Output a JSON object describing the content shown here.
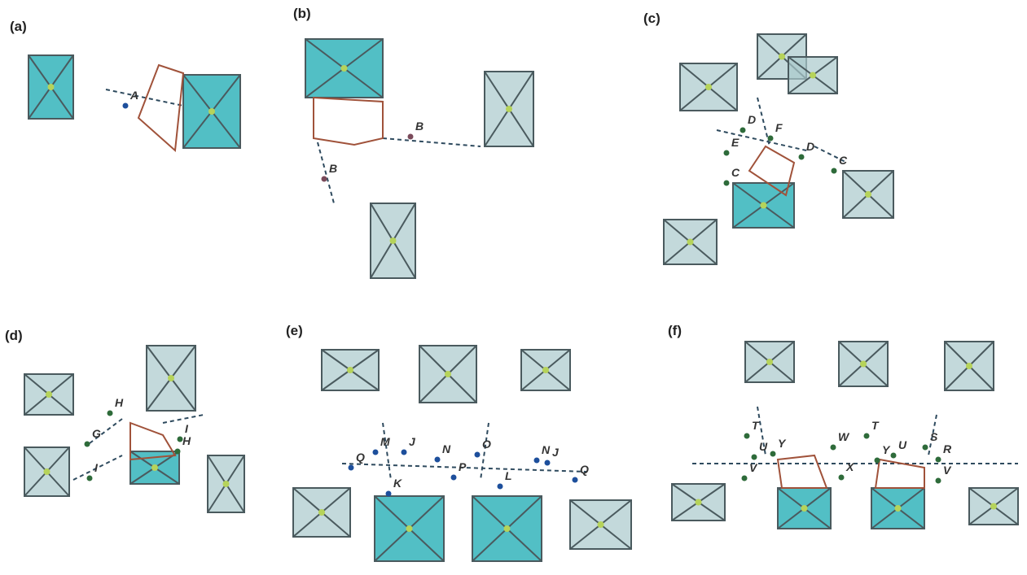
{
  "panels": [
    {
      "label": "(a)",
      "annotations": [
        "A"
      ]
    },
    {
      "label": "(b)",
      "annotations": [
        "B",
        "B"
      ]
    },
    {
      "label": "(c)",
      "annotations": [
        "D",
        "F",
        "E",
        "D",
        "C",
        "C"
      ]
    },
    {
      "label": "(d)",
      "annotations": [
        "H",
        "I",
        "G",
        "H",
        "I"
      ]
    },
    {
      "label": "(e)",
      "annotations": [
        "M",
        "J",
        "N",
        "O",
        "N",
        "J",
        "Q",
        "K",
        "P",
        "L",
        "Q"
      ]
    },
    {
      "label": "(f)",
      "annotations": [
        "T",
        "Y",
        "W",
        "T",
        "U",
        "S",
        "R",
        "U",
        "V",
        "Y",
        "X",
        "V"
      ]
    }
  ]
}
